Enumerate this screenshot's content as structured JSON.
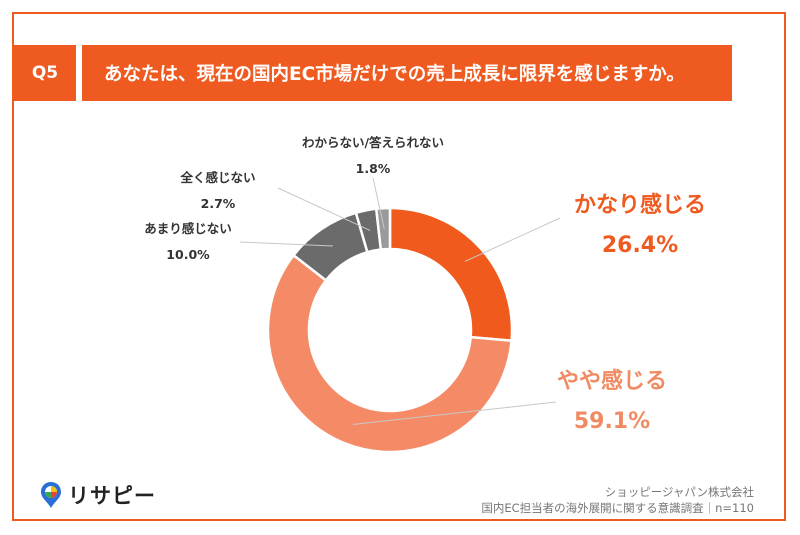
{
  "question": {
    "badge": "Q5",
    "title": "あなたは、現在の国内EC市場だけでの売上成長に限界を感じますか。"
  },
  "chart_data": {
    "type": "pie",
    "title": "",
    "slices": [
      {
        "label": "かなり感じる",
        "value": 26.4,
        "display": "26.4%",
        "color": "#f05a1c"
      },
      {
        "label": "やや感じる",
        "value": 59.1,
        "display": "59.1%",
        "color": "#f58a67"
      },
      {
        "label": "あまり感じない",
        "value": 10.0,
        "display": "10.0%",
        "color": "#6b6b6b"
      },
      {
        "label": "全く感じない",
        "value": 2.7,
        "display": "2.7%",
        "color": "#6b6b6b"
      },
      {
        "label": "わからない/答えられない",
        "value": 1.8,
        "display": "1.8%",
        "color": "#9a9a9a"
      }
    ]
  },
  "footer": {
    "company": "ショッピージャパン株式会社",
    "survey": "国内EC担当者の海外展開に関する意識調査｜n=110"
  },
  "logo": {
    "text": "リサピー"
  }
}
